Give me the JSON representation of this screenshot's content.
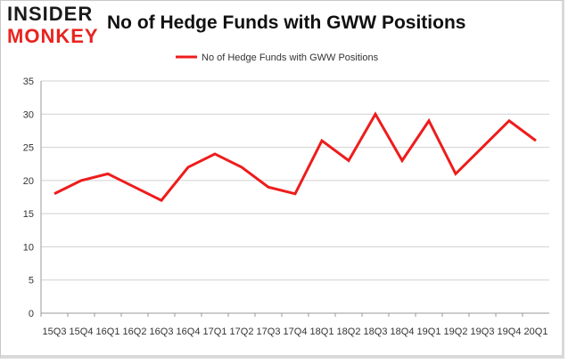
{
  "logo": {
    "line1": "INSIDER",
    "line2": "MONKEY"
  },
  "chart_data": {
    "type": "line",
    "title": "No of Hedge Funds with GWW Positions",
    "categories": [
      "15Q3",
      "15Q4",
      "16Q1",
      "16Q2",
      "16Q3",
      "16Q4",
      "17Q1",
      "17Q2",
      "17Q3",
      "17Q4",
      "18Q1",
      "18Q2",
      "18Q3",
      "18Q4",
      "19Q1",
      "19Q2",
      "19Q3",
      "19Q4",
      "20Q1"
    ],
    "series": [
      {
        "name": "No of Hedge Funds with GWW Positions",
        "values": [
          18,
          20,
          21,
          19,
          17,
          22,
          24,
          22,
          19,
          18,
          26,
          23,
          30,
          23,
          29,
          21,
          25,
          29,
          26
        ]
      }
    ],
    "ylim": [
      0,
      35
    ],
    "yticks": [
      0,
      5,
      10,
      15,
      20,
      25,
      30,
      35
    ],
    "grid": true,
    "legend": "top-center",
    "colors": {
      "line": "#ee1c1c",
      "grid": "#d0d0d0",
      "axis": "#999999"
    }
  }
}
